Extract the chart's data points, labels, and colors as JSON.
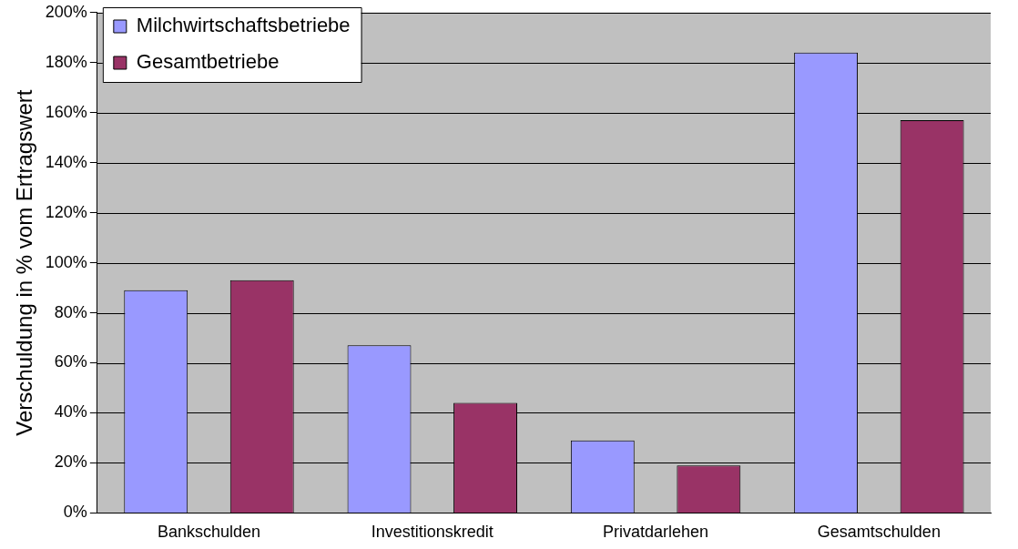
{
  "chart_data": {
    "type": "bar",
    "ylabel": "Verschuldung in % vom Ertragswert",
    "categories": [
      "Bankschulden",
      "Investitionskredit",
      "Privatdarlehen",
      "Gesamtschulden"
    ],
    "series": [
      {
        "name": "Milchwirtschaftsbetriebe",
        "color": "#9999ff",
        "values": [
          89,
          67,
          29,
          184
        ]
      },
      {
        "name": "Gesamtbetriebe",
        "color": "#993366",
        "values": [
          93,
          44,
          19,
          157
        ]
      }
    ],
    "ylim": [
      0,
      200
    ],
    "yticks": [
      {
        "value": 0,
        "label": "0%"
      },
      {
        "value": 20,
        "label": "20%"
      },
      {
        "value": 40,
        "label": "40%"
      },
      {
        "value": 60,
        "label": "60%"
      },
      {
        "value": 80,
        "label": "80%"
      },
      {
        "value": 100,
        "label": "100%"
      },
      {
        "value": 120,
        "label": "120%"
      },
      {
        "value": 140,
        "label": "140%"
      },
      {
        "value": 160,
        "label": "160%"
      },
      {
        "value": 180,
        "label": "180%"
      },
      {
        "value": 200,
        "label": "200%"
      }
    ],
    "grid": "y",
    "legend": "top left"
  }
}
